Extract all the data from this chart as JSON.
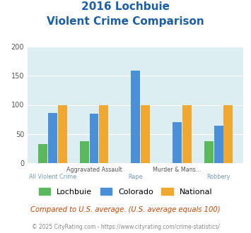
{
  "title_line1": "2016 Lochbuie",
  "title_line2": "Violent Crime Comparison",
  "categories": [
    "All Violent Crime",
    "Aggravated Assault",
    "Rape",
    "Murder & Mans...",
    "Robbery"
  ],
  "lochbuie": [
    33,
    38,
    0,
    0,
    37
  ],
  "colorado": [
    86,
    85,
    159,
    70,
    64
  ],
  "national": [
    100,
    100,
    100,
    100,
    100
  ],
  "lochbuie_color": "#5cb85c",
  "colorado_color": "#4a90d9",
  "national_color": "#f0a830",
  "bg_color": "#ddeef3",
  "ylim": [
    0,
    200
  ],
  "yticks": [
    0,
    50,
    100,
    150,
    200
  ],
  "footnote": "Compared to U.S. average. (U.S. average equals 100)",
  "copyright": "© 2025 CityRating.com - https://www.cityrating.com/crime-statistics/",
  "title_color": "#1a5fa8",
  "footnote_color": "#cc4400",
  "copyright_color": "#888888"
}
